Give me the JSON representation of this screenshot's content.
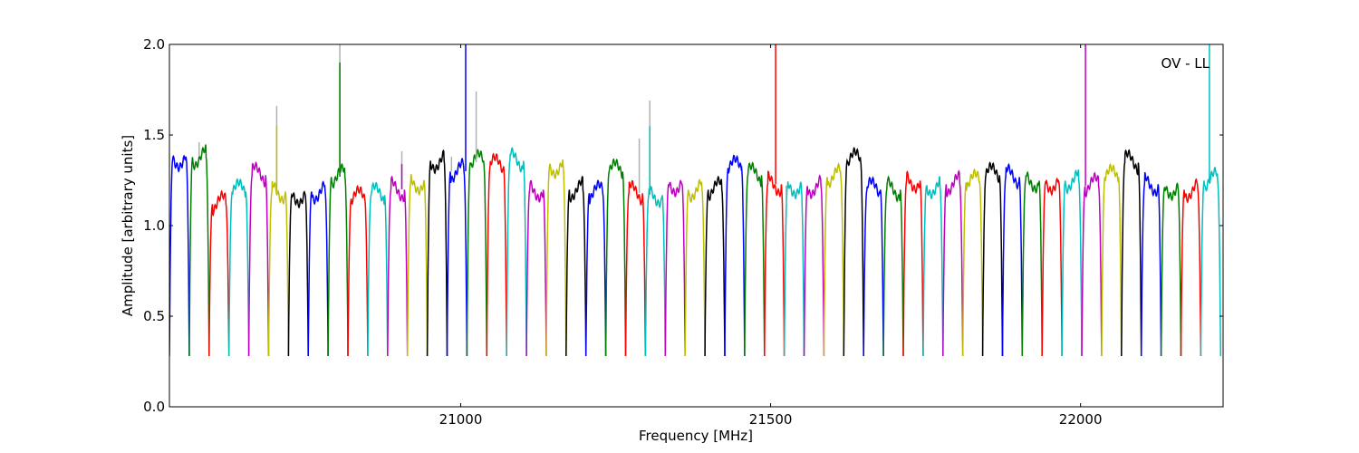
{
  "chart_data": {
    "type": "line",
    "annotation": "OV - LL",
    "xlabel": "Frequency [MHz]",
    "ylabel": "Amplitude [arbitrary units]",
    "xlim": [
      20530,
      22230
    ],
    "ylim": [
      0.0,
      2.0
    ],
    "x_ticks": [
      21000,
      21500,
      22000
    ],
    "x_tick_labels": [
      "21000",
      "21500",
      "22000"
    ],
    "y_ticks": [
      0.0,
      0.5,
      1.0,
      1.5,
      2.0
    ],
    "y_tick_labels": [
      "0.0",
      "0.5",
      "1.0",
      "1.5",
      "2.0"
    ],
    "grid": false,
    "legend": false,
    "colors": [
      "#0000ff",
      "#008000",
      "#ff0000",
      "#00bfbf",
      "#bf00bf",
      "#bfbf00",
      "#000000"
    ],
    "reference_color": "#b0b0b0",
    "band_start": 20530,
    "band_spacing": 32,
    "band_edge_level": 0.28,
    "band_levels": [
      1.37,
      1.38,
      1.12,
      1.19,
      1.28,
      1.19,
      1.17,
      1.19,
      1.27,
      1.15,
      1.17,
      1.2,
      1.24,
      1.36,
      1.3,
      1.35,
      1.33,
      1.36,
      1.2,
      1.33,
      1.2,
      1.18,
      1.3,
      1.18,
      1.17,
      1.23,
      1.2,
      1.2,
      1.32,
      1.28,
      1.23,
      1.22,
      1.22,
      1.27,
      1.36,
      1.2,
      1.2,
      1.25,
      1.22,
      1.23,
      1.24,
      1.28,
      1.27,
      1.25,
      1.24,
      1.25,
      1.22,
      1.27,
      1.35,
      1.23,
      1.21,
      1.2,
      1.25
    ],
    "spikes": [
      {
        "x": 20578,
        "y": 1.46,
        "ref": true
      },
      {
        "x": 20703,
        "y": 1.66,
        "ref": true
      },
      {
        "x": 20703,
        "y": 1.55,
        "ref": false
      },
      {
        "x": 20805,
        "y": 2.0,
        "ref": true
      },
      {
        "x": 20805,
        "y": 1.9,
        "ref": false
      },
      {
        "x": 20905,
        "y": 1.41,
        "ref": true
      },
      {
        "x": 20905,
        "y": 1.34,
        "ref": false
      },
      {
        "x": 20985,
        "y": 1.38,
        "ref": true
      },
      {
        "x": 21008,
        "y": 2.0,
        "ref": false
      },
      {
        "x": 21025,
        "y": 1.74,
        "ref": true
      },
      {
        "x": 21288,
        "y": 1.48,
        "ref": true
      },
      {
        "x": 21305,
        "y": 1.69,
        "ref": true
      },
      {
        "x": 21305,
        "y": 1.55,
        "ref": false
      },
      {
        "x": 21508,
        "y": 2.0,
        "ref": false
      },
      {
        "x": 21525,
        "y": 1.12,
        "ref": true
      },
      {
        "x": 22008,
        "y": 2.0,
        "ref": false
      },
      {
        "x": 22208,
        "y": 2.0,
        "ref": false
      }
    ]
  }
}
